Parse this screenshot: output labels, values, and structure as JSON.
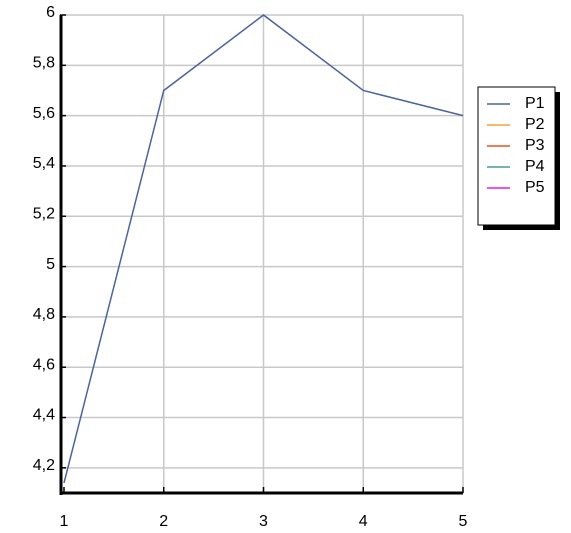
{
  "chart_data": {
    "type": "line",
    "x": [
      1,
      2,
      3,
      4,
      5
    ],
    "series": [
      {
        "name": "P1",
        "color": "#4a64a0",
        "values": [
          4.14,
          5.7,
          6,
          5.7,
          5.6
        ]
      },
      {
        "name": "P2",
        "color": "#f5a040",
        "values": [
          null,
          null,
          null,
          null,
          null
        ]
      },
      {
        "name": "P3",
        "color": "#e8501e",
        "values": [
          null,
          null,
          null,
          null,
          null
        ]
      },
      {
        "name": "P4",
        "color": "#4a9a9a",
        "values": [
          null,
          null,
          null,
          null,
          null
        ]
      },
      {
        "name": "P5",
        "color": "#e020e0",
        "values": [
          null,
          null,
          null,
          null,
          null
        ]
      }
    ],
    "xlim": [
      1,
      5
    ],
    "xticks": [
      1,
      2,
      3,
      4,
      5
    ],
    "ylim": [
      4.1,
      6
    ],
    "yticks": [
      {
        "value": 4.2,
        "label": "4,2"
      },
      {
        "value": 4.4,
        "label": "4,4"
      },
      {
        "value": 4.6,
        "label": "4,6"
      },
      {
        "value": 4.8,
        "label": "4,8"
      },
      5,
      {
        "value": 5.2,
        "label": "5,2"
      },
      {
        "value": 5.4,
        "label": "5,4"
      },
      {
        "value": 5.6,
        "label": "5,6"
      },
      {
        "value": 5.8,
        "label": "5,8"
      },
      6
    ],
    "grid": true,
    "legend": "right"
  }
}
